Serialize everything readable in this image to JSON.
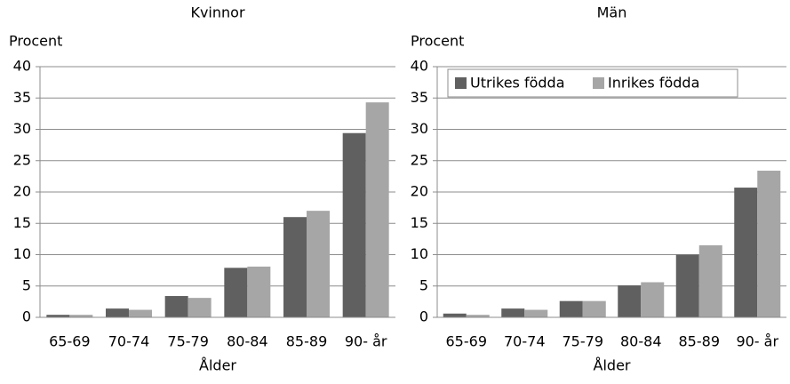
{
  "chart_data": [
    {
      "type": "bar",
      "title": "Kvinnor",
      "y_label": "Procent",
      "x_label": "Ålder",
      "categories": [
        "65-69",
        "70-74",
        "75-79",
        "80-84",
        "85-89",
        "90- år"
      ],
      "series": [
        {
          "name": "Utrikes födda",
          "color": "#606060",
          "values": [
            0.4,
            1.4,
            3.4,
            7.9,
            16.0,
            29.4
          ]
        },
        {
          "name": "Inrikes födda",
          "color": "#a6a6a6",
          "values": [
            0.4,
            1.2,
            3.1,
            8.1,
            17.0,
            34.3
          ]
        }
      ],
      "ylim": [
        0,
        40
      ],
      "yticks": [
        0,
        5,
        10,
        15,
        20,
        25,
        30,
        35,
        40
      ],
      "grid": true,
      "legend": false
    },
    {
      "type": "bar",
      "title": "Män",
      "y_label": "Procent",
      "x_label": "Ålder",
      "categories": [
        "65-69",
        "70-74",
        "75-79",
        "80-84",
        "85-89",
        "90- år"
      ],
      "series": [
        {
          "name": "Utrikes födda",
          "color": "#606060",
          "values": [
            0.6,
            1.4,
            2.6,
            5.1,
            10.0,
            20.7
          ]
        },
        {
          "name": "Inrikes födda",
          "color": "#a6a6a6",
          "values": [
            0.4,
            1.2,
            2.6,
            5.6,
            11.5,
            23.4
          ]
        }
      ],
      "ylim": [
        0,
        40
      ],
      "yticks": [
        0,
        5,
        10,
        15,
        20,
        25,
        30,
        35,
        40
      ],
      "grid": true,
      "legend": "top-left"
    }
  ]
}
